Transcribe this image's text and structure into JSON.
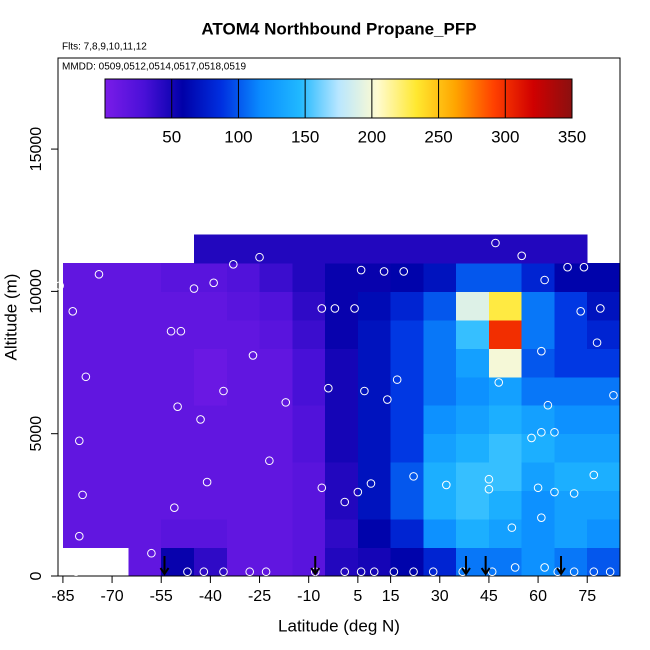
{
  "chart_data": {
    "type": "heatmap",
    "title": "ATOM4 Northbound Propane_PFP",
    "subtitle": "Flts: 7,8,9,10,11,12",
    "annotation": "MMDD: 0509,0512,0514,0517,0518,0519",
    "x_label": "Latitude (deg N)",
    "y_label": "Altitude (m)",
    "xlim": [
      -86.5,
      85
    ],
    "ylim": [
      0,
      18200
    ],
    "xticks": [
      -85,
      -70,
      -55,
      -40,
      -25,
      -10,
      5,
      15,
      30,
      45,
      60,
      75
    ],
    "yticks": [
      0,
      5000,
      10000,
      15000
    ],
    "x_bins": [
      -85,
      -75,
      -65,
      -55,
      -45,
      -35,
      -25,
      -15,
      -5,
      5,
      15,
      25,
      35,
      45,
      55,
      65,
      75,
      85
    ],
    "y_bins": [
      0,
      1000,
      2000,
      3000,
      4000,
      5000,
      6000,
      7000,
      8000,
      9000,
      10000,
      11000,
      12000
    ],
    "values": [
      [
        null,
        null,
        15,
        55,
        40,
        15,
        15,
        20,
        45,
        50,
        60,
        80,
        110,
        110,
        120,
        110,
        100
      ],
      [
        15,
        15,
        15,
        20,
        20,
        15,
        15,
        20,
        40,
        60,
        80,
        120,
        140,
        130,
        120,
        130,
        120
      ],
      [
        15,
        15,
        15,
        15,
        15,
        15,
        15,
        20,
        45,
        70,
        100,
        140,
        150,
        140,
        120,
        130,
        130
      ],
      [
        15,
        15,
        15,
        15,
        15,
        15,
        15,
        20,
        45,
        70,
        100,
        140,
        150,
        150,
        130,
        140,
        140
      ],
      [
        15,
        15,
        15,
        15,
        15,
        15,
        15,
        25,
        50,
        70,
        90,
        130,
        140,
        150,
        140,
        130,
        130
      ],
      [
        15,
        15,
        15,
        15,
        15,
        15,
        15,
        25,
        50,
        70,
        90,
        120,
        130,
        140,
        130,
        120,
        120
      ],
      [
        15,
        15,
        15,
        15,
        10,
        15,
        15,
        30,
        50,
        70,
        90,
        110,
        120,
        130,
        110,
        110,
        110
      ],
      [
        15,
        15,
        15,
        15,
        10,
        15,
        15,
        30,
        50,
        70,
        90,
        110,
        130,
        200,
        100,
        90,
        90
      ],
      [
        15,
        15,
        15,
        15,
        15,
        15,
        20,
        35,
        55,
        70,
        90,
        110,
        150,
        300,
        110,
        90,
        80
      ],
      [
        15,
        15,
        15,
        15,
        15,
        20,
        25,
        40,
        55,
        65,
        80,
        100,
        190,
        230,
        110,
        90,
        70
      ],
      [
        15,
        15,
        15,
        20,
        20,
        25,
        35,
        45,
        55,
        55,
        60,
        70,
        100,
        100,
        80,
        60,
        60
      ],
      [
        null,
        null,
        null,
        null,
        45,
        45,
        45,
        45,
        45,
        45,
        45,
        45,
        45,
        45,
        45,
        45,
        null
      ]
    ],
    "colorbar": {
      "lim": [
        0,
        350
      ],
      "ticks": [
        50,
        100,
        150,
        200,
        250,
        300,
        350
      ],
      "colors": [
        "#7a1ce8",
        "#4a10d8",
        "#0000a8",
        "#0030e0",
        "#0a8cff",
        "#20b8ff",
        "#b8e6ff",
        "#fffbd0",
        "#ffe830",
        "#ffa500",
        "#ff4000",
        "#d00000",
        "#8b1010"
      ]
    },
    "points": {
      "color": "#ffffff",
      "x": [
        -86,
        -74,
        -82,
        -78,
        -80,
        -79,
        -80,
        -45,
        -39,
        -52,
        -49,
        -27,
        -36,
        -50,
        -43,
        -41,
        -22,
        -51,
        -25,
        -33,
        -17,
        -4,
        -6,
        -2,
        4,
        6,
        13,
        19,
        7,
        14,
        17,
        1,
        -6,
        5,
        9,
        22,
        32,
        47,
        55,
        62,
        69,
        74,
        73,
        79,
        61,
        48,
        63,
        61,
        65,
        58,
        78,
        83,
        77,
        60,
        65,
        71,
        45,
        45,
        52,
        61,
        53,
        62,
        -58,
        -81,
        -47,
        -42,
        -36,
        -28,
        -23,
        -8,
        1,
        6,
        10,
        16,
        22,
        28,
        37,
        46,
        66,
        71,
        77,
        82
      ],
      "y": [
        10200,
        10600,
        9300,
        7000,
        4750,
        2850,
        1400,
        10100,
        10300,
        8600,
        8600,
        7750,
        6500,
        5950,
        5500,
        3300,
        4050,
        2400,
        11200,
        10950,
        6100,
        6600,
        9400,
        9400,
        9400,
        10750,
        10700,
        10700,
        6500,
        6200,
        6900,
        2600,
        3100,
        2950,
        3250,
        3500,
        3200,
        11700,
        11250,
        10400,
        10850,
        10850,
        9300,
        9400,
        7900,
        6800,
        6000,
        5050,
        5050,
        4850,
        8200,
        6350,
        3550,
        3100,
        2950,
        2900,
        3400,
        3050,
        1700,
        2050,
        300,
        300,
        800,
        150,
        150,
        150,
        150,
        150,
        150,
        150,
        150,
        150,
        150,
        150,
        150,
        150,
        150,
        150,
        150,
        150,
        150,
        150
      ]
    },
    "arrows_x": [
      -54,
      -8,
      38,
      44,
      67
    ]
  }
}
